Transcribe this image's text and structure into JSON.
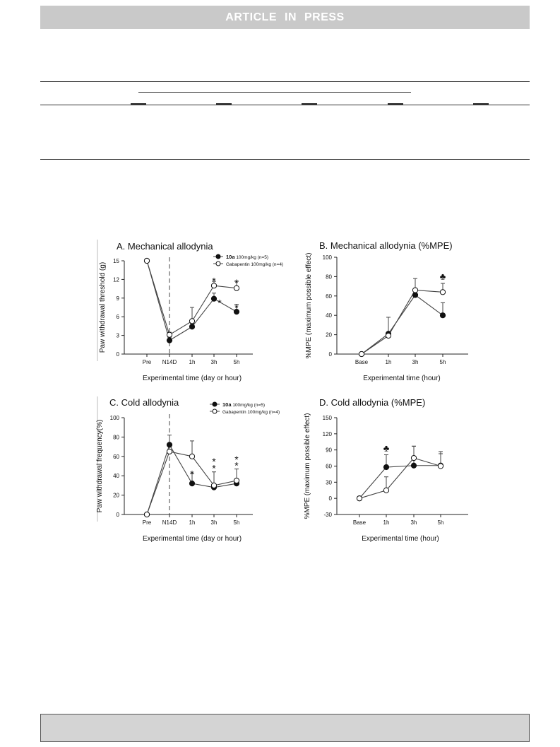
{
  "header": {
    "banner_text": "ARTICLE IN PRESS"
  },
  "colors": {
    "banner_bg": "#c9c9c9",
    "footer_bg": "#d4d4d4",
    "line": "#555555"
  },
  "chart_data": [
    {
      "panel": "A",
      "type": "line",
      "title": "A. Mechanical allodynia",
      "xlabel": "Experimental time (day or hour)",
      "ylabel": "Paw withdrawal threshold (g)",
      "categories": [
        "Pre",
        "N14D",
        "1h",
        "3h",
        "5h"
      ],
      "ylim": [
        0,
        15
      ],
      "yticks": [
        0,
        3,
        6,
        9,
        12,
        15
      ],
      "ytick_labels": [
        "0",
        "3",
        "6",
        "9",
        "12",
        "15"
      ],
      "dashed_after_index": 1,
      "legend_position": "top-right",
      "series": [
        {
          "name_bold": "10a",
          "name_rest": " 100mg/kg (n=5)",
          "marker": "filled",
          "values": [
            15,
            2.2,
            4.4,
            8.9,
            6.8
          ],
          "errors": [
            0,
            0.5,
            0.5,
            0.9,
            1.2
          ]
        },
        {
          "name_bold": "",
          "name_rest": "Gabapentin 100mg/kg (n=4)",
          "marker": "open",
          "values": [
            15,
            3.1,
            5.3,
            11.0,
            10.6
          ],
          "errors": [
            0,
            0.4,
            2.2,
            0.7,
            1.1
          ]
        }
      ],
      "annotations": [
        {
          "text": "*",
          "category": "3h",
          "y": 12.1
        },
        {
          "text": "*",
          "category": "5h",
          "y": 11.8
        },
        {
          "text": "*",
          "category": "3h",
          "y": 8.6,
          "offset": "right"
        },
        {
          "text": "*",
          "category": "5h",
          "y": 7.8
        }
      ]
    },
    {
      "panel": "B",
      "type": "line",
      "title": "B. Mechanical allodynia (%MPE)",
      "xlabel": "Experimental time (hour)",
      "ylabel": "%MPE (maximum possible effect)",
      "categories": [
        "Base",
        "1h",
        "3h",
        "5h"
      ],
      "ylim": [
        0,
        100
      ],
      "yticks": [
        0,
        20,
        40,
        60,
        80,
        100
      ],
      "ytick_labels": [
        "0",
        "20",
        "40",
        "60",
        "80",
        "100"
      ],
      "series": [
        {
          "name": "10a",
          "marker": "filled",
          "values": [
            0,
            21,
            61,
            40
          ],
          "errors": [
            0,
            17,
            5,
            13
          ]
        },
        {
          "name": "Gabapentin",
          "marker": "open",
          "values": [
            0,
            19,
            66,
            64
          ],
          "errors": [
            0,
            2,
            12,
            9
          ]
        }
      ],
      "annotations": [
        {
          "text": "♣",
          "category": "5h",
          "y": 80
        }
      ]
    },
    {
      "panel": "C",
      "type": "line",
      "title": "C. Cold allodynia",
      "xlabel": "Experimental time (day or hour)",
      "ylabel": "Paw withdrawal frequency(%)",
      "categories": [
        "Pre",
        "N14D",
        "1h",
        "3h",
        "5h"
      ],
      "ylim": [
        0,
        100
      ],
      "yticks": [
        0,
        20,
        40,
        60,
        80,
        100
      ],
      "ytick_labels": [
        "0",
        "20",
        "40",
        "60",
        "80",
        "100"
      ],
      "dashed_after_index": 1,
      "legend_position": "top-right",
      "series": [
        {
          "name_bold": "10a",
          "name_rest": " 100mg/kg (n=5)",
          "marker": "filled",
          "values": [
            0,
            72,
            32,
            28,
            32
          ],
          "errors": [
            0,
            10,
            10,
            3,
            4
          ]
        },
        {
          "name_bold": "",
          "name_rest": "Gabapentin 100mg/kg (n=4)",
          "marker": "open",
          "values": [
            0,
            65,
            60,
            30,
            35
          ],
          "errors": [
            0,
            8,
            16,
            14,
            12
          ]
        }
      ],
      "annotations": [
        {
          "text": "*",
          "category": "1h",
          "y": 44
        },
        {
          "text": "*",
          "category": "3h",
          "y": 50
        },
        {
          "text": "*",
          "category": "3h",
          "y": 57
        },
        {
          "text": "*",
          "category": "5h",
          "y": 53
        },
        {
          "text": "*",
          "category": "5h",
          "y": 59
        }
      ]
    },
    {
      "panel": "D",
      "type": "line",
      "title": "D. Cold allodynia (%MPE)",
      "xlabel": "Experimental time (hour)",
      "ylabel": "%MPE (maximum possible effect)",
      "categories": [
        "Base",
        "1h",
        "3h",
        "5h"
      ],
      "ylim": [
        -30,
        150
      ],
      "yticks": [
        -30,
        0,
        30,
        60,
        90,
        120,
        150
      ],
      "ytick_labels": [
        "-30",
        "0",
        "30",
        "60",
        "90",
        "120",
        "150"
      ],
      "series": [
        {
          "name": "10a",
          "marker": "filled",
          "values": [
            0,
            58,
            61,
            61
          ],
          "errors": [
            0,
            23,
            36,
            22
          ]
        },
        {
          "name": "Gabapentin",
          "marker": "open",
          "values": [
            0,
            15,
            75,
            60
          ],
          "errors": [
            0,
            25,
            22,
            27
          ]
        }
      ],
      "annotations": [
        {
          "text": "♣",
          "category": "1h",
          "y": 93
        }
      ]
    }
  ]
}
